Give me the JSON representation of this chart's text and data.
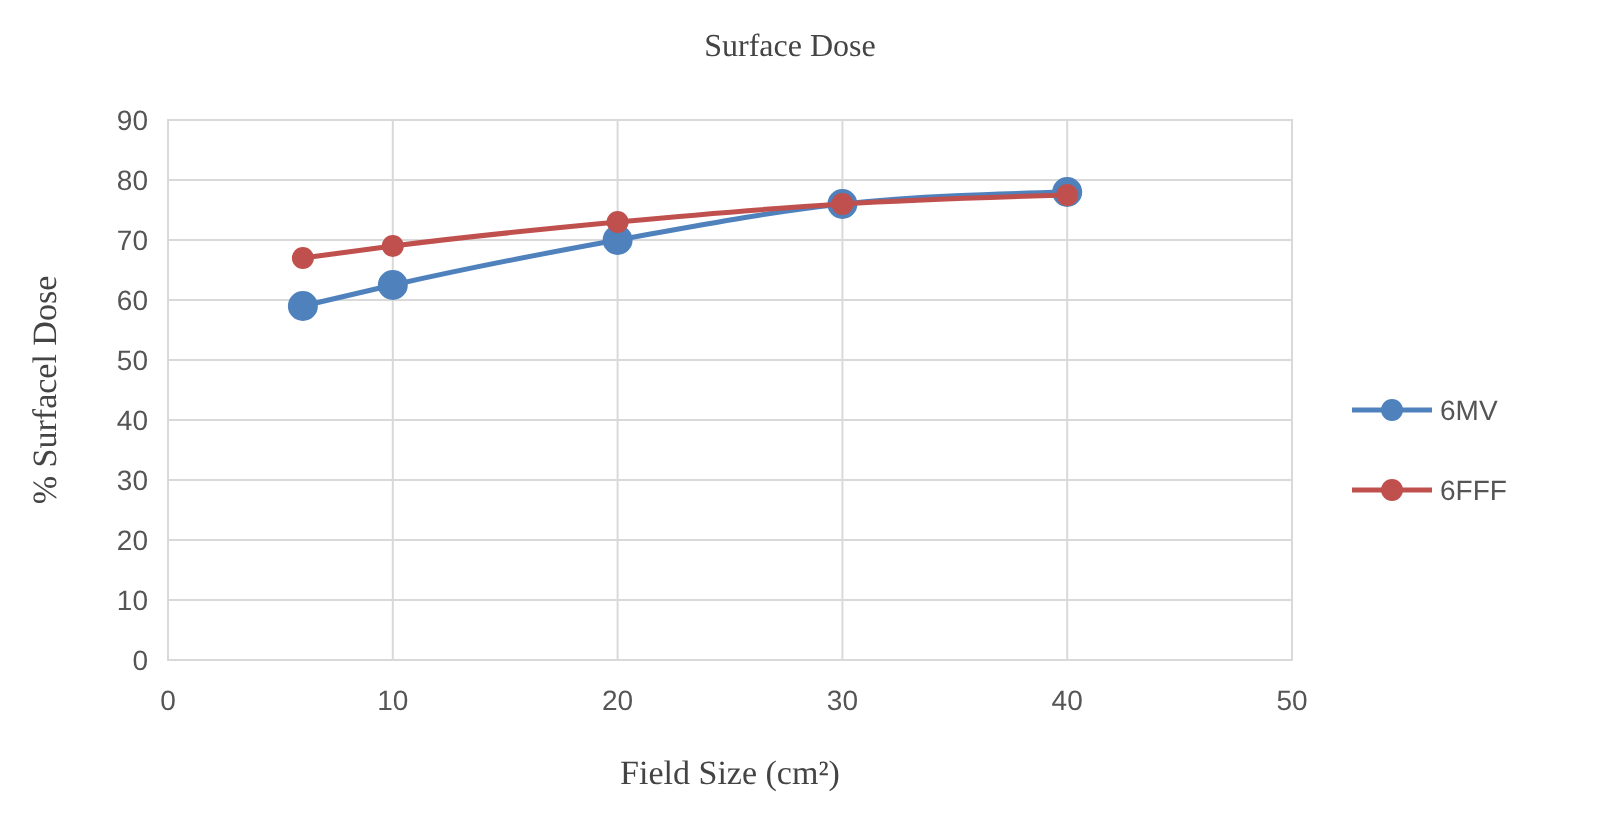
{
  "chart_data": {
    "type": "line",
    "title": "Surface Dose",
    "xlabel": "Field Size (cm²)",
    "ylabel": "% Surfacel Dose",
    "x": [
      6,
      10,
      20,
      30,
      40
    ],
    "series": [
      {
        "name": "6MV",
        "color": "#4f81bd",
        "values": [
          59,
          62.5,
          70,
          76,
          78
        ]
      },
      {
        "name": "6FFF",
        "color": "#c0504d",
        "values": [
          67,
          69,
          73,
          76,
          77.5
        ]
      }
    ],
    "xlim": [
      0,
      50
    ],
    "xticks": [
      0,
      10,
      20,
      30,
      40,
      50
    ],
    "ylim": [
      0,
      90
    ],
    "yticks": [
      0,
      10,
      20,
      30,
      40,
      50,
      60,
      70,
      80,
      90
    ],
    "grid": true,
    "legend": "right",
    "marker": "circle",
    "line_style": "solid"
  }
}
